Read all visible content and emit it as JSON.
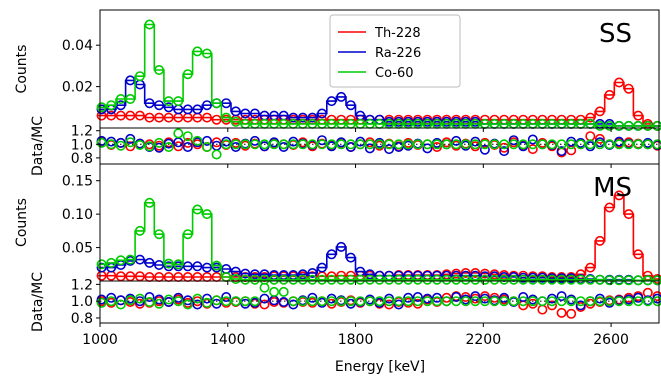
{
  "chart_data": {
    "type": "line",
    "x_range": [
      1000,
      2750
    ],
    "xlabel": "Energy [keV]",
    "x_ticks": [
      1000,
      1400,
      1800,
      2200,
      2600
    ],
    "x_ticklabels": [
      "1000",
      "1400",
      "1800",
      "2200",
      "2600"
    ],
    "bins": [
      1005,
      1035,
      1065,
      1095,
      1125,
      1155,
      1185,
      1215,
      1245,
      1275,
      1305,
      1335,
      1365,
      1395,
      1425,
      1455,
      1485,
      1515,
      1545,
      1575,
      1605,
      1635,
      1665,
      1695,
      1725,
      1755,
      1785,
      1815,
      1845,
      1875,
      1905,
      1935,
      1965,
      1995,
      2025,
      2055,
      2085,
      2115,
      2145,
      2175,
      2205,
      2235,
      2265,
      2295,
      2325,
      2355,
      2385,
      2415,
      2445,
      2475,
      2505,
      2535,
      2565,
      2595,
      2625,
      2655,
      2685,
      2715,
      2745
    ],
    "legend": {
      "position": "upper center",
      "entries": [
        {
          "label": "Th-228",
          "color": "#ff0000"
        },
        {
          "label": "Ra-226",
          "color": "#0000cc"
        },
        {
          "label": "Co-60",
          "color": "#00cc00"
        }
      ]
    },
    "panels": [
      {
        "id": "ss-spectrum",
        "tag": "SS",
        "ylabel": "Counts",
        "ylim": [
          0,
          0.057
        ],
        "y_ticks": [
          0.02,
          0.04
        ],
        "y_ticklabels": [
          "0.02",
          "0.04"
        ],
        "series": [
          {
            "name": "Th-228",
            "color": "#ff0000",
            "values": [
              0.006,
              0.006,
              0.006,
              0.006,
              0.006,
              0.005,
              0.005,
              0.005,
              0.005,
              0.005,
              0.005,
              0.005,
              0.004,
              0.004,
              0.004,
              0.004,
              0.004,
              0.004,
              0.004,
              0.004,
              0.004,
              0.004,
              0.004,
              0.004,
              0.004,
              0.004,
              0.004,
              0.004,
              0.004,
              0.004,
              0.004,
              0.004,
              0.004,
              0.004,
              0.004,
              0.004,
              0.004,
              0.004,
              0.004,
              0.004,
              0.004,
              0.004,
              0.004,
              0.004,
              0.004,
              0.004,
              0.004,
              0.004,
              0.004,
              0.004,
              0.004,
              0.005,
              0.008,
              0.016,
              0.022,
              0.019,
              0.006,
              0.002,
              0.001
            ]
          },
          {
            "name": "Ra-226",
            "color": "#0000cc",
            "values": [
              0.009,
              0.009,
              0.011,
              0.023,
              0.021,
              0.012,
              0.011,
              0.01,
              0.009,
              0.009,
              0.009,
              0.011,
              0.012,
              0.012,
              0.008,
              0.007,
              0.007,
              0.006,
              0.006,
              0.006,
              0.005,
              0.005,
              0.005,
              0.007,
              0.013,
              0.015,
              0.011,
              0.006,
              0.004,
              0.004,
              0.003,
              0.003,
              0.003,
              0.003,
              0.003,
              0.003,
              0.003,
              0.003,
              0.003,
              0.003,
              0.002,
              0.002,
              0.002,
              0.002,
              0.002,
              0.002,
              0.002,
              0.002,
              0.002,
              0.002,
              0.002,
              0.002,
              0.002,
              0.002,
              0.001,
              0.001,
              0.001,
              0.001,
              0.001
            ]
          },
          {
            "name": "Co-60",
            "color": "#00cc00",
            "values": [
              0.01,
              0.011,
              0.014,
              0.014,
              0.025,
              0.05,
              0.028,
              0.013,
              0.013,
              0.026,
              0.037,
              0.036,
              0.012,
              0.005,
              0.003,
              0.002,
              0.002,
              0.002,
              0.002,
              0.002,
              0.002,
              0.002,
              0.002,
              0.002,
              0.002,
              0.002,
              0.002,
              0.002,
              0.002,
              0.002,
              0.002,
              0.002,
              0.002,
              0.002,
              0.002,
              0.002,
              0.002,
              0.002,
              0.002,
              0.002,
              0.002,
              0.002,
              0.002,
              0.002,
              0.002,
              0.002,
              0.002,
              0.002,
              0.002,
              0.002,
              0.002,
              0.002,
              0.001,
              0.001,
              0.001,
              0.001,
              0.001,
              0.001,
              0.001
            ]
          }
        ]
      },
      {
        "id": "ss-ratio",
        "ylabel": "Data/MC",
        "ylim": [
          0.71,
          1.24
        ],
        "y_ticks": [
          0.8,
          1.0,
          1.2
        ],
        "y_ticklabels": [
          "0.8",
          "1.0",
          "1.2"
        ],
        "reference_line": 1.0,
        "series": [
          {
            "name": "Th-228",
            "color": "#ff0000",
            "values": [
              1.03,
              0.99,
              1.02,
              0.97,
              1.01,
              1.0,
              0.98,
              1.03,
              0.97,
              1.02,
              1.0,
              0.96,
              1.03,
              0.99,
              1.02,
              0.98,
              1.01,
              0.97,
              1.02,
              1.0,
              0.99,
              1.03,
              0.97,
              1.01,
              0.98,
              1.02,
              0.96,
              1.0,
              1.03,
              0.98,
              1.01,
              0.97,
              1.02,
              0.99,
              1.0,
              0.96,
              1.03,
              0.98,
              1.01,
              0.97,
              1.02,
              0.99,
              0.95,
              1.03,
              0.98,
              0.93,
              1.02,
              0.97,
              0.88,
              0.91,
              1.0,
              1.12,
              1.08,
              1.0,
              1.02,
              1.03,
              1.01,
              1.0,
              0.98
            ]
          },
          {
            "name": "Ra-226",
            "color": "#0000cc",
            "values": [
              1.05,
              1.04,
              1.02,
              1.08,
              1.01,
              0.96,
              0.95,
              1.01,
              1.03,
              0.96,
              1.03,
              1.05,
              0.98,
              1.04,
              0.96,
              1.01,
              1.05,
              0.97,
              1.03,
              0.96,
              1.04,
              1.01,
              0.99,
              1.06,
              0.97,
              1.03,
              0.96,
              1.04,
              0.94,
              1.02,
              0.93,
              0.96,
              0.98,
              1.01,
              0.94,
              1.02,
              1.0,
              1.05,
              0.98,
              1.04,
              0.92,
              1.01,
              0.9,
              1.06,
              0.97,
              1.07,
              1.0,
              0.99,
              0.9,
              1.04,
              1.02,
              0.97,
              1.03,
              0.99,
              1.04,
              1.01,
              1.0,
              1.02,
              0.99
            ]
          },
          {
            "name": "Co-60",
            "color": "#00cc00",
            "values": [
              1.02,
              1.0,
              0.98,
              1.03,
              0.99,
              0.97,
              1.02,
              0.96,
              1.16,
              1.12,
              1.05,
              0.96,
              0.85,
              1.0,
              1.0,
              1.0,
              1.0,
              1.0,
              1.0,
              1.0,
              1.0,
              1.0,
              1.0,
              1.0,
              1.0,
              1.0,
              1.0,
              1.0,
              1.0,
              1.0,
              1.0,
              1.0,
              1.0,
              1.0,
              1.0,
              1.0,
              1.0,
              1.0,
              1.0,
              1.0,
              1.0,
              1.0,
              1.0,
              1.0,
              1.0,
              1.0,
              1.0,
              1.0,
              1.0,
              1.0,
              1.0,
              1.0,
              1.0,
              1.0,
              1.0,
              1.0,
              1.0,
              1.0,
              1.0
            ]
          }
        ]
      },
      {
        "id": "ms-spectrum",
        "tag": "MS",
        "ylabel": "Counts",
        "ylim": [
          0,
          0.175
        ],
        "y_ticks": [
          0.05,
          0.1,
          0.15
        ],
        "y_ticklabels": [
          "0.05",
          "0.10",
          "0.15"
        ],
        "series": [
          {
            "name": "Th-228",
            "color": "#ff0000",
            "values": [
              0.008,
              0.008,
              0.007,
              0.007,
              0.007,
              0.006,
              0.006,
              0.006,
              0.006,
              0.006,
              0.006,
              0.006,
              0.006,
              0.006,
              0.006,
              0.006,
              0.006,
              0.006,
              0.007,
              0.007,
              0.007,
              0.007,
              0.007,
              0.007,
              0.007,
              0.008,
              0.008,
              0.008,
              0.008,
              0.008,
              0.008,
              0.009,
              0.009,
              0.009,
              0.009,
              0.009,
              0.01,
              0.011,
              0.012,
              0.012,
              0.011,
              0.01,
              0.009,
              0.008,
              0.008,
              0.007,
              0.007,
              0.006,
              0.006,
              0.006,
              0.01,
              0.02,
              0.06,
              0.11,
              0.128,
              0.1,
              0.04,
              0.008,
              0.003
            ]
          },
          {
            "name": "Ra-226",
            "color": "#0000cc",
            "values": [
              0.02,
              0.02,
              0.024,
              0.03,
              0.032,
              0.027,
              0.024,
              0.022,
              0.022,
              0.022,
              0.022,
              0.02,
              0.02,
              0.018,
              0.014,
              0.011,
              0.01,
              0.01,
              0.009,
              0.009,
              0.009,
              0.01,
              0.012,
              0.02,
              0.04,
              0.051,
              0.035,
              0.014,
              0.01,
              0.008,
              0.008,
              0.008,
              0.008,
              0.008,
              0.008,
              0.008,
              0.008,
              0.008,
              0.008,
              0.008,
              0.007,
              0.007,
              0.006,
              0.006,
              0.005,
              0.005,
              0.005,
              0.004,
              0.004,
              0.004,
              0.003,
              0.003,
              0.002,
              0.002,
              0.002,
              0.002,
              0.001,
              0.001,
              0.001
            ]
          },
          {
            "name": "Co-60",
            "color": "#00cc00",
            "values": [
              0.025,
              0.027,
              0.031,
              0.032,
              0.075,
              0.117,
              0.07,
              0.026,
              0.025,
              0.07,
              0.107,
              0.1,
              0.023,
              0.006,
              0.003,
              0.002,
              0.002,
              0.002,
              0.002,
              0.002,
              0.002,
              0.002,
              0.002,
              0.002,
              0.002,
              0.002,
              0.002,
              0.002,
              0.002,
              0.002,
              0.002,
              0.002,
              0.002,
              0.002,
              0.002,
              0.002,
              0.002,
              0.002,
              0.002,
              0.002,
              0.002,
              0.002,
              0.002,
              0.002,
              0.002,
              0.002,
              0.002,
              0.002,
              0.002,
              0.002,
              0.002,
              0.002,
              0.002,
              0.001,
              0.001,
              0.001,
              0.001,
              0.001,
              0.001
            ]
          }
        ]
      },
      {
        "id": "ms-ratio",
        "ylabel": "Data/MC",
        "ylim": [
          0.74,
          1.24
        ],
        "y_ticks": [
          0.8,
          1.0,
          1.2
        ],
        "y_ticklabels": [
          "0.8",
          "1.0",
          "1.2"
        ],
        "reference_line": 1.0,
        "series": [
          {
            "name": "Th-228",
            "color": "#ff0000",
            "values": [
              1.0,
              0.98,
              1.01,
              0.99,
              0.97,
              0.98,
              1.0,
              0.99,
              1.02,
              0.98,
              1.0,
              0.97,
              1.01,
              0.98,
              0.99,
              1.0,
              0.97,
              0.96,
              0.99,
              0.98,
              1.0,
              0.99,
              0.98,
              1.0,
              0.97,
              0.99,
              1.01,
              0.98,
              1.0,
              0.97,
              0.96,
              0.99,
              0.98,
              0.97,
              1.02,
              0.99,
              1.04,
              1.06,
              1.05,
              1.03,
              1.06,
              1.04,
              1.02,
              1.0,
              0.95,
              0.97,
              0.9,
              0.95,
              0.86,
              0.85,
              0.93,
              0.97,
              0.99,
              1.01,
              1.02,
              1.04,
              1.06,
              1.1,
              1.06
            ]
          },
          {
            "name": "Ra-226",
            "color": "#0000cc",
            "values": [
              1.02,
              1.04,
              1.01,
              1.03,
              1.0,
              1.05,
              1.02,
              0.99,
              1.04,
              1.01,
              0.96,
              1.03,
              0.97,
              1.05,
              1.0,
              0.97,
              0.98,
              1.03,
              1.01,
              0.99,
              0.96,
              1.01,
              1.04,
              0.98,
              1.03,
              1.01,
              0.97,
              0.99,
              1.02,
              0.98,
              1.03,
              0.96,
              1.04,
              1.05,
              1.03,
              1.04,
              1.0,
              1.05,
              1.02,
              1.06,
              1.03,
              1.01,
              1.04,
              0.99,
              1.05,
              1.02,
              1.0,
              1.03,
              1.06,
              1.02,
              0.95,
              1.0,
              1.03,
              0.98,
              1.01,
              1.02,
              1.04,
              1.01,
              1.03
            ]
          },
          {
            "name": "Co-60",
            "color": "#00cc00",
            "values": [
              0.98,
              1.0,
              0.96,
              1.01,
              1.03,
              0.99,
              0.97,
              1.02,
              1.0,
              0.96,
              1.03,
              0.98,
              1.01,
              1.0,
              1.0,
              1.0,
              1.0,
              1.16,
              1.11,
              1.11,
              1.0,
              1.0,
              1.0,
              1.0,
              1.0,
              1.0,
              1.0,
              1.0,
              1.0,
              1.0,
              1.0,
              1.0,
              1.0,
              1.0,
              1.0,
              1.0,
              1.0,
              1.0,
              1.0,
              1.0,
              1.0,
              1.0,
              1.0,
              1.0,
              1.0,
              1.0,
              1.0,
              1.0,
              1.0,
              1.0,
              1.0,
              1.0,
              1.0,
              1.0,
              1.0,
              1.0,
              1.0,
              1.0,
              1.0
            ]
          }
        ]
      }
    ]
  }
}
